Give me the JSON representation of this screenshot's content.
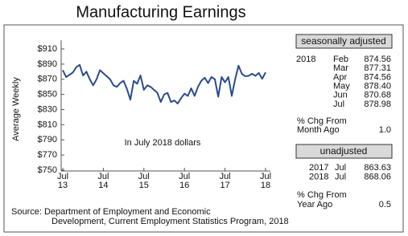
{
  "chart_data": {
    "type": "line",
    "title": "Manufacturing Earnings",
    "y_label": "Average Weekly",
    "annotation": "In July 2018 dollars",
    "categories": [
      "Jul 13",
      null,
      null,
      null,
      null,
      null,
      null,
      null,
      null,
      null,
      null,
      null,
      "Jul 14",
      null,
      null,
      null,
      null,
      null,
      null,
      null,
      null,
      null,
      null,
      null,
      "Jul 15",
      null,
      null,
      null,
      null,
      null,
      null,
      null,
      null,
      null,
      null,
      null,
      "Jul 16",
      null,
      null,
      null,
      null,
      null,
      null,
      null,
      null,
      null,
      null,
      null,
      "Jul 17",
      null,
      null,
      null,
      null,
      null,
      null,
      null,
      null,
      null,
      null,
      null,
      "Jul 18"
    ],
    "values": [
      882,
      873,
      876,
      879,
      886,
      889,
      875,
      880,
      870,
      862,
      870,
      882,
      878,
      874,
      870,
      862,
      860,
      865,
      868,
      857,
      843,
      868,
      864,
      875,
      856,
      862,
      860,
      856,
      852,
      840,
      850,
      852,
      840,
      842,
      838,
      845,
      851,
      848,
      858,
      848,
      860,
      868,
      872,
      865,
      873,
      870,
      847,
      873,
      866,
      873,
      848,
      870,
      888,
      877,
      874,
      874.56,
      877.31,
      874.56,
      878.4,
      870.68,
      878.98
    ],
    "color": "#2b4c8c",
    "ylim": [
      750,
      910
    ],
    "yticks": [
      {
        "value": 750,
        "label": "$750"
      },
      {
        "value": 770,
        "label": "$770"
      },
      {
        "value": 790,
        "label": "$790"
      },
      {
        "value": 810,
        "label": "$810"
      },
      {
        "value": 830,
        "label": "$830"
      },
      {
        "value": 850,
        "label": "$850"
      },
      {
        "value": 870,
        "label": "$870"
      },
      {
        "value": 890,
        "label": "$890"
      },
      {
        "value": 910,
        "label": "$910"
      }
    ],
    "grid": false
  },
  "source": [
    "Source: Department of Employment and Economic",
    "Development, Current Employment Statistics Program, 2018"
  ],
  "panel": {
    "seasonal": {
      "header": "seasonally adjusted",
      "year": "2018",
      "rows": [
        {
          "month": "Feb",
          "value": "874.56"
        },
        {
          "month": "Mar",
          "value": "877.31"
        },
        {
          "month": "Apr",
          "value": "874.56"
        },
        {
          "month": "May",
          "value": "878.40"
        },
        {
          "month": "Jun",
          "value": "870.68"
        },
        {
          "month": "Jul",
          "value": "878.98"
        }
      ],
      "chg_label": [
        "% Chg From",
        "Month Ago"
      ],
      "chg_value": "1.0"
    },
    "unadjusted": {
      "header": "unadjusted",
      "rows": [
        {
          "year": "2017",
          "month": "Jul",
          "value": "863.63"
        },
        {
          "year": "2018",
          "month": "Jul",
          "value": "868.06"
        }
      ],
      "chg_label": [
        "% Chg From",
        "Year Ago"
      ],
      "chg_value": "0.5"
    }
  }
}
